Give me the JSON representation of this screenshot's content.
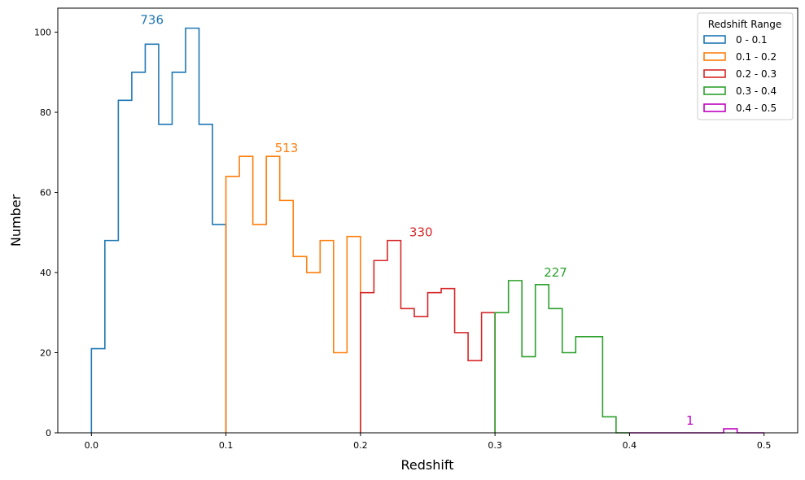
{
  "chart_data": {
    "type": "histogram",
    "xlabel": "Redshift",
    "ylabel": "Number",
    "xlim": [
      -0.025,
      0.525
    ],
    "ylim": [
      0,
      106
    ],
    "x_ticks": [
      0.0,
      0.1,
      0.2,
      0.3,
      0.4,
      0.5
    ],
    "x_tick_labels": [
      "0.0",
      "0.1",
      "0.2",
      "0.3",
      "0.4",
      "0.5"
    ],
    "y_ticks": [
      0,
      20,
      40,
      60,
      80,
      100
    ],
    "y_tick_labels": [
      "0",
      "20",
      "40",
      "60",
      "80",
      "100"
    ],
    "bin_width": 0.01,
    "legend": {
      "title": "Redshift Range",
      "placement": "top-right"
    },
    "series": [
      {
        "name": "0 - 0.1",
        "color": "#1f77b4",
        "start": 0.0,
        "values": [
          21,
          48,
          83,
          90,
          97,
          77,
          90,
          101,
          77,
          52
        ],
        "total_label": "736",
        "label_at": [
          0.045,
          101
        ]
      },
      {
        "name": "0.1 - 0.2",
        "color": "#ff7f0e",
        "start": 0.1,
        "values": [
          64,
          69,
          52,
          69,
          58,
          44,
          40,
          48,
          20,
          49
        ],
        "total_label": "513",
        "label_at": [
          0.145,
          69
        ]
      },
      {
        "name": "0.2 - 0.3",
        "color": "#d62728",
        "start": 0.2,
        "values": [
          35,
          43,
          48,
          31,
          29,
          35,
          36,
          25,
          18,
          30
        ],
        "total_label": "330",
        "label_at": [
          0.245,
          48
        ]
      },
      {
        "name": "0.3 - 0.4",
        "color": "#2ca02c",
        "start": 0.3,
        "values": [
          30,
          38,
          19,
          37,
          31,
          20,
          24,
          24,
          4,
          0
        ],
        "total_label": "227",
        "label_at": [
          0.345,
          38
        ]
      },
      {
        "name": "0.4 - 0.5",
        "color": "#bf00bf",
        "start": 0.4,
        "values": [
          0,
          0,
          0,
          0,
          0,
          0,
          0,
          1,
          0,
          0
        ],
        "total_label": "1",
        "label_at": [
          0.445,
          1
        ]
      }
    ]
  }
}
